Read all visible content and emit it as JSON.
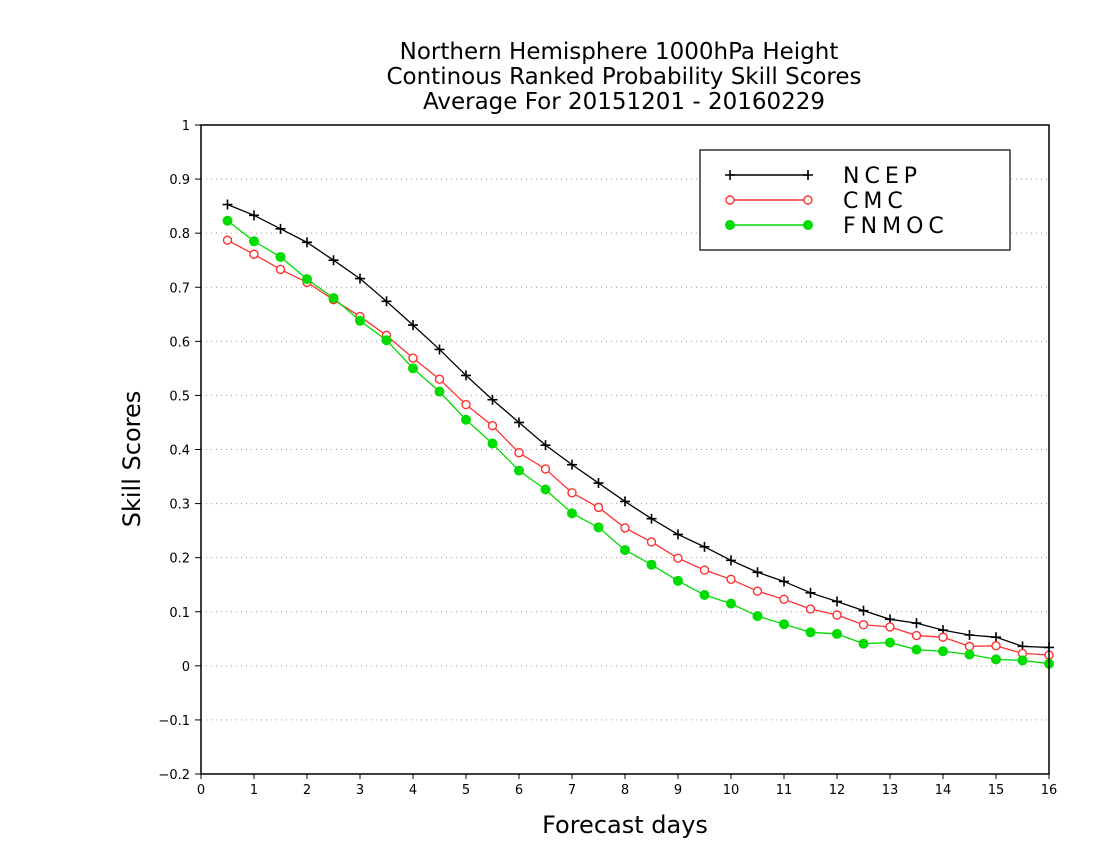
{
  "chart_data": {
    "type": "line",
    "title": [
      "Northern Hemisphere 1000hPa Height",
      "Continous Ranked Probability Skill Scores",
      "Average For 20151201 - 20160229"
    ],
    "xlabel": "Forecast days",
    "ylabel": "Skill Scores",
    "xlim": [
      0,
      16
    ],
    "ylim": [
      -0.2,
      1
    ],
    "xticks": [
      "0",
      "1",
      "2",
      "3",
      "4",
      "5",
      "6",
      "7",
      "8",
      "9",
      "10",
      "11",
      "12",
      "13",
      "14",
      "15",
      "16"
    ],
    "yticks": [
      "−0.2",
      "−0.1",
      "0",
      "0.1",
      "0.2",
      "0.3",
      "0.4",
      "0.5",
      "0.6",
      "0.7",
      "0.8",
      "0.9",
      "1"
    ],
    "grid": true,
    "legend_position": "top-right",
    "x": [
      0.5,
      1,
      1.5,
      2,
      2.5,
      3,
      3.5,
      4,
      4.5,
      5,
      5.5,
      6,
      6.5,
      7,
      7.5,
      8,
      8.5,
      9,
      9.5,
      10,
      10.5,
      11,
      11.5,
      12,
      12.5,
      13,
      13.5,
      14,
      14.5,
      15,
      15.5,
      16
    ],
    "series": [
      {
        "name": "NCEP",
        "color": "#000000",
        "marker": "plus",
        "values": [
          0.853,
          0.833,
          0.808,
          0.783,
          0.75,
          0.716,
          0.674,
          0.63,
          0.585,
          0.537,
          0.492,
          0.45,
          0.408,
          0.372,
          0.338,
          0.304,
          0.272,
          0.243,
          0.22,
          0.195,
          0.173,
          0.156,
          0.135,
          0.119,
          0.102,
          0.086,
          0.079,
          0.066,
          0.057,
          0.053,
          0.036,
          0.034
        ]
      },
      {
        "name": "CMC",
        "color": "#ff3030",
        "marker": "open-circle",
        "values": [
          0.787,
          0.761,
          0.733,
          0.709,
          0.677,
          0.646,
          0.611,
          0.569,
          0.53,
          0.483,
          0.444,
          0.394,
          0.364,
          0.32,
          0.293,
          0.255,
          0.229,
          0.199,
          0.177,
          0.16,
          0.138,
          0.123,
          0.105,
          0.094,
          0.076,
          0.072,
          0.056,
          0.053,
          0.036,
          0.037,
          0.023,
          0.02
        ]
      },
      {
        "name": "FNMOC",
        "color": "#00dc00",
        "marker": "filled-circle",
        "values": [
          0.823,
          0.785,
          0.756,
          0.715,
          0.68,
          0.638,
          0.602,
          0.55,
          0.507,
          0.455,
          0.411,
          0.361,
          0.326,
          0.282,
          0.256,
          0.214,
          0.187,
          0.157,
          0.131,
          0.115,
          0.092,
          0.077,
          0.062,
          0.059,
          0.041,
          0.043,
          0.03,
          0.027,
          0.021,
          0.012,
          0.01,
          0.004
        ]
      }
    ]
  }
}
